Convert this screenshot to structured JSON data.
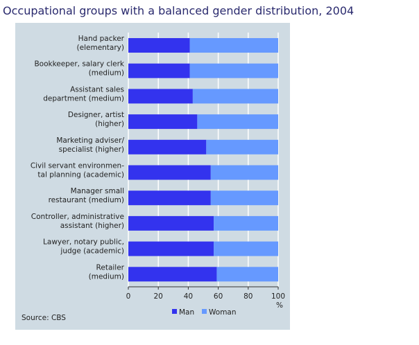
{
  "title": "Occupational groups with a balanced gender distribution, 2004",
  "source": "Source: CBS",
  "chart_data": {
    "type": "bar",
    "stacked": true,
    "orientation": "horizontal",
    "categories": [
      [
        "Hand packer",
        "(elementary)"
      ],
      [
        "Bookkeeper, salary clerk",
        "(medium)"
      ],
      [
        "Assistant sales",
        "department (medium)"
      ],
      [
        "Designer, artist",
        "(higher)"
      ],
      [
        "Marketing adviser/",
        "specialist (higher)"
      ],
      [
        "Civil servant environmen-",
        "tal planning (academic)"
      ],
      [
        "Manager small",
        "restaurant (medium)"
      ],
      [
        "Controller, administrative",
        "assistant (higher)"
      ],
      [
        "Lawyer, notary public,",
        "judge (academic)"
      ],
      [
        "Retailer",
        "(medium)"
      ]
    ],
    "series": [
      {
        "name": "Man",
        "color": "#3333ee",
        "values": [
          41,
          41,
          43,
          46,
          52,
          55,
          55,
          57,
          57,
          59
        ]
      },
      {
        "name": "Woman",
        "color": "#6699ff",
        "values": [
          59,
          59,
          57,
          54,
          48,
          45,
          45,
          43,
          43,
          41
        ]
      }
    ],
    "xlim": [
      0,
      100
    ],
    "xticks": [
      0,
      20,
      40,
      60,
      80,
      100
    ],
    "xunit": "%",
    "grid": true,
    "legend": "bottom"
  }
}
